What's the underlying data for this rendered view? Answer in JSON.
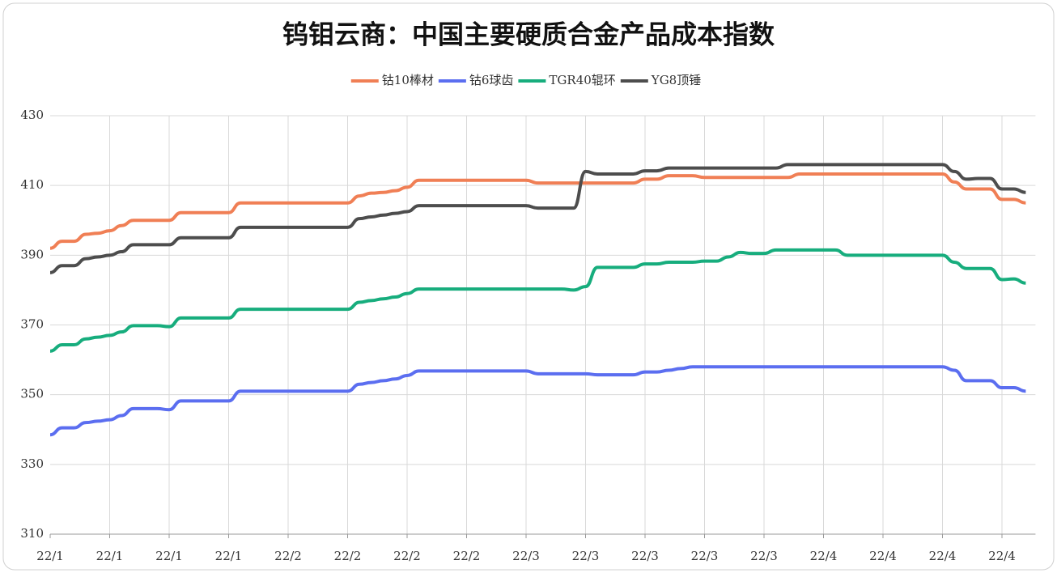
{
  "chart_data": {
    "type": "line",
    "title": "钨钼云商：中国主要硬质合金产品成本指数",
    "categories": [
      "22/1",
      null,
      null,
      null,
      null,
      "22/1",
      null,
      null,
      null,
      null,
      "22/1",
      null,
      null,
      null,
      null,
      "22/1",
      null,
      null,
      null,
      null,
      "22/2",
      null,
      null,
      null,
      null,
      "22/2",
      null,
      null,
      null,
      null,
      "22/2",
      null,
      null,
      null,
      null,
      "22/2",
      null,
      null,
      null,
      null,
      "22/3",
      null,
      null,
      null,
      null,
      "22/3",
      null,
      null,
      null,
      null,
      "22/3",
      null,
      null,
      null,
      null,
      "22/3",
      null,
      null,
      null,
      null,
      "22/3",
      null,
      null,
      null,
      null,
      "22/4",
      null,
      null,
      null,
      null,
      "22/4",
      null,
      null,
      null,
      null,
      "22/4",
      null,
      null,
      null,
      null,
      "22/4",
      null,
      null
    ],
    "series": [
      {
        "name": "钴10棒材",
        "color": "#f07f55",
        "values": [
          392,
          394,
          394,
          396,
          396.3,
          397,
          398.5,
          400,
          400,
          400,
          400,
          402.2,
          402.2,
          402.2,
          402.2,
          402.2,
          405,
          405,
          405,
          405,
          405,
          405,
          405,
          405,
          405,
          405,
          407,
          407.8,
          408,
          408.5,
          409.5,
          411.5,
          411.5,
          411.5,
          411.5,
          411.5,
          411.5,
          411.5,
          411.5,
          411.5,
          411.5,
          410.7,
          410.7,
          410.7,
          410.7,
          410.7,
          410.7,
          410.7,
          410.7,
          410.7,
          411.8,
          411.8,
          412.8,
          412.8,
          412.8,
          412.3,
          412.3,
          412.3,
          412.3,
          412.3,
          412.3,
          412.3,
          412.3,
          413.3,
          413.3,
          413.3,
          413.3,
          413.3,
          413.3,
          413.3,
          413.3,
          413.3,
          413.3,
          413.3,
          413.3,
          413.3,
          411,
          409,
          409,
          409,
          406,
          406,
          405
        ]
      },
      {
        "name": "钴6球齿",
        "color": "#5b6ef0",
        "values": [
          338.5,
          340.5,
          340.5,
          342,
          342.4,
          342.8,
          344,
          346,
          346,
          346,
          345.7,
          348.2,
          348.2,
          348.2,
          348.2,
          348.2,
          351,
          351,
          351,
          351,
          351,
          351,
          351,
          351,
          351,
          351,
          353,
          353.5,
          354,
          354.5,
          355.5,
          356.8,
          356.8,
          356.8,
          356.8,
          356.8,
          356.8,
          356.8,
          356.8,
          356.8,
          356.8,
          356,
          356,
          356,
          356,
          356,
          355.7,
          355.7,
          355.7,
          355.7,
          356.5,
          356.5,
          357,
          357.5,
          358,
          358,
          358,
          358,
          358,
          358,
          358,
          358,
          358,
          358,
          358,
          358,
          358,
          358,
          358,
          358,
          358,
          358,
          358,
          358,
          358,
          358,
          357,
          354,
          354,
          354,
          352,
          352,
          351
        ]
      },
      {
        "name": "TGR40辊环",
        "color": "#17ad7d",
        "values": [
          362.5,
          364.3,
          364.3,
          366,
          366.5,
          367,
          368,
          369.8,
          369.8,
          369.8,
          369.5,
          372,
          372,
          372,
          372,
          372,
          374.5,
          374.5,
          374.5,
          374.5,
          374.5,
          374.5,
          374.5,
          374.5,
          374.5,
          374.5,
          376.5,
          377,
          377.5,
          378,
          379,
          380.3,
          380.3,
          380.3,
          380.3,
          380.3,
          380.3,
          380.3,
          380.3,
          380.3,
          380.3,
          380.3,
          380.3,
          380.3,
          380,
          381,
          386.5,
          386.5,
          386.5,
          386.5,
          387.5,
          387.5,
          388,
          388,
          388,
          388.3,
          388.3,
          389.5,
          390.8,
          390.5,
          390.5,
          391.5,
          391.5,
          391.5,
          391.5,
          391.5,
          391.5,
          390,
          390,
          390,
          390,
          390,
          390,
          390,
          390,
          390,
          388,
          386.2,
          386.2,
          386.2,
          383,
          383.2,
          382
        ]
      },
      {
        "name": "YG8顶锤",
        "color": "#4d4d4d",
        "values": [
          385,
          387,
          387,
          389,
          389.5,
          390,
          391,
          393,
          393,
          393,
          393,
          395,
          395,
          395,
          395,
          395,
          398,
          398,
          398,
          398,
          398,
          398,
          398,
          398,
          398,
          398,
          400.5,
          401,
          401.5,
          402,
          402.5,
          404.2,
          404.2,
          404.2,
          404.2,
          404.2,
          404.2,
          404.2,
          404.2,
          404.2,
          404.2,
          403.5,
          403.5,
          403.5,
          403.5,
          414,
          413.3,
          413.3,
          413.3,
          413.3,
          414.2,
          414.2,
          415,
          415,
          415,
          415,
          415,
          415,
          415,
          415,
          415,
          415,
          416,
          416,
          416,
          416,
          416,
          416,
          416,
          416,
          416,
          416,
          416,
          416,
          416,
          416,
          414,
          411.8,
          412,
          412,
          409,
          409,
          408
        ]
      }
    ],
    "ylim": [
      310,
      430
    ],
    "yticks": [
      310,
      330,
      350,
      370,
      390,
      410,
      430
    ],
    "grid": true,
    "legend": "top"
  }
}
